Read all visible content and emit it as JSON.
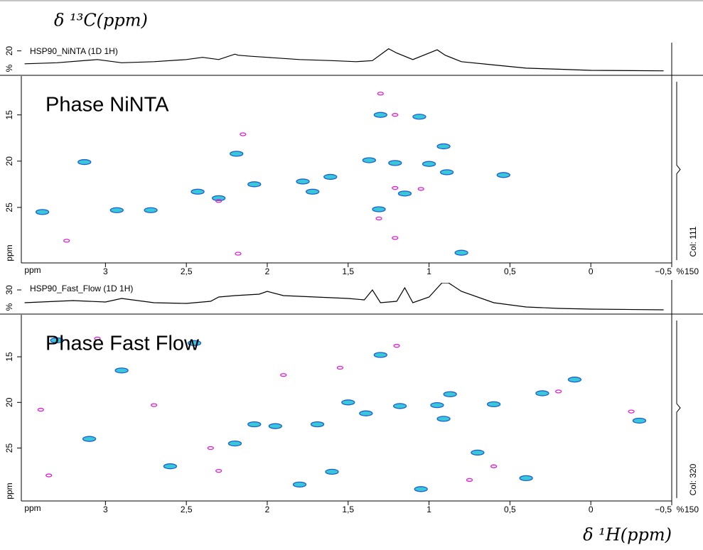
{
  "y_axis_title": "δ ¹³C(ppm)",
  "x_axis_title": "δ ¹H(ppm)",
  "chart_data": [
    {
      "type": "scatter",
      "title": "Phase NiNTA",
      "spectrum_label": "HSP90_NiNTA (1D 1H)",
      "column_label": "Col: 111",
      "x_label": "ppm",
      "y_label": "ppm",
      "right_unit": "%",
      "right_tick": 150,
      "xlim": [
        3.52,
        -0.5
      ],
      "xticks": [
        3,
        {
          "value": 2.5,
          "label": "2,5"
        },
        2,
        {
          "value": 1.5,
          "label": "1,5"
        },
        1,
        {
          "value": 0.5,
          "label": "0,5"
        },
        0,
        {
          "value": -0.5,
          "label": "−0,5"
        }
      ],
      "ylim": [
        10.8,
        31
      ],
      "yticks": [
        15,
        20,
        25
      ],
      "series": [
        {
          "color": "#1f5fd6",
          "x": [
            2.93,
            2.72,
            2.43,
            2.3,
            2.19,
            2.08,
            1.78,
            1.61,
            1.37,
            1.21,
            1.0,
            0.89,
            0.91,
            1.3,
            1.31,
            1.06,
            3.13,
            3.39,
            0.8,
            0.54,
            1.72,
            1.15
          ],
          "values": [
            25.3,
            25.3,
            23.3,
            24.0,
            19.2,
            22.5,
            22.2,
            21.7,
            19.9,
            20.2,
            20.3,
            21.2,
            18.4,
            15.0,
            25.2,
            15.2,
            20.1,
            25.5,
            29.9,
            21.5,
            23.3,
            23.5
          ]
        },
        {
          "color": "#e020d0",
          "x": [
            1.3,
            1.21,
            1.05,
            2.3,
            1.31,
            1.21,
            2.15,
            2.18,
            3.24,
            1.21
          ],
          "values": [
            12.7,
            15.0,
            23.0,
            24.3,
            26.2,
            28.3,
            17.1,
            30.0,
            28.6,
            22.9
          ]
        }
      ],
      "projection": {
        "x": [
          3.5,
          3.3,
          3.05,
          2.9,
          2.7,
          2.5,
          2.4,
          2.3,
          2.2,
          2.18,
          2.1,
          2.0,
          1.8,
          1.6,
          1.45,
          1.35,
          1.25,
          1.2,
          1.1,
          0.95,
          0.9,
          0.8,
          0.6,
          0.4,
          0.2,
          0,
          -0.45
        ],
        "values": [
          8,
          9,
          12,
          9,
          10,
          12,
          14,
          12,
          17,
          16,
          15,
          14,
          12,
          11,
          10,
          11,
          22,
          18,
          12,
          21,
          16,
          10,
          7,
          4,
          3,
          2,
          1.5
        ],
        "unit": "%",
        "ylim": [
          0,
          25
        ],
        "yticks": [
          20
        ]
      }
    },
    {
      "type": "scatter",
      "title": "Phase Fast Flow",
      "spectrum_label": "HSP90_Fast_Flow (1D 1H)",
      "column_label": "Col: 320",
      "x_label": "ppm",
      "y_label": "ppm",
      "right_unit": "%",
      "right_tick": 150,
      "xlim": [
        3.52,
        -0.5
      ],
      "xticks": [
        3,
        {
          "value": 2.5,
          "label": "2,5"
        },
        2,
        {
          "value": 1.5,
          "label": "1,5"
        },
        1,
        {
          "value": 0.5,
          "label": "0,5"
        },
        0,
        {
          "value": -0.5,
          "label": "−0,5"
        }
      ],
      "ylim": [
        10.4,
        30.8
      ],
      "yticks": [
        15,
        20,
        25
      ],
      "series": [
        {
          "color": "#1f5fd6",
          "x": [
            1.18,
            0.95,
            1.5,
            1.69,
            1.95,
            2.08,
            1.39,
            0.87,
            0.6,
            0.91,
            3.3,
            2.9,
            2.6,
            2.2,
            1.8,
            1.3,
            0.7,
            0.4,
            0.1,
            -0.3,
            3.1,
            2.45,
            1.6,
            0.3,
            1.05
          ],
          "values": [
            20.4,
            20.3,
            20.0,
            22.4,
            22.6,
            22.4,
            21.2,
            19.1,
            20.2,
            21.8,
            13.2,
            16.5,
            27.0,
            24.5,
            29.0,
            14.8,
            25.5,
            28.3,
            17.5,
            22.0,
            24.0,
            13.5,
            27.6,
            19.0,
            29.5
          ]
        },
        {
          "color": "#e020d0",
          "x": [
            3.4,
            3.05,
            2.7,
            2.3,
            1.9,
            1.2,
            0.6,
            0.2,
            -0.25,
            3.35,
            2.35,
            0.75,
            1.55
          ],
          "values": [
            20.8,
            13.0,
            20.3,
            27.5,
            17.0,
            13.8,
            27.0,
            18.8,
            21.0,
            28.0,
            25.0,
            28.5,
            16.2
          ]
        }
      ],
      "projection": {
        "x": [
          3.5,
          3.2,
          3.0,
          2.9,
          2.7,
          2.5,
          2.35,
          2.3,
          2.2,
          2.05,
          2.0,
          1.9,
          1.7,
          1.5,
          1.4,
          1.35,
          1.3,
          1.2,
          1.15,
          1.1,
          1.0,
          0.92,
          0.88,
          0.8,
          0.6,
          0.4,
          0.2,
          0,
          -0.45
        ],
        "values": [
          12,
          15,
          13,
          18,
          12,
          11,
          14,
          20,
          22,
          24,
          28,
          22,
          20,
          18,
          16,
          30,
          12,
          14,
          33,
          12,
          20,
          40,
          40,
          28,
          12,
          6,
          4,
          3,
          2
        ],
        "unit": "%",
        "ylim": [
          0,
          40
        ],
        "yticks": [
          30
        ]
      }
    }
  ]
}
